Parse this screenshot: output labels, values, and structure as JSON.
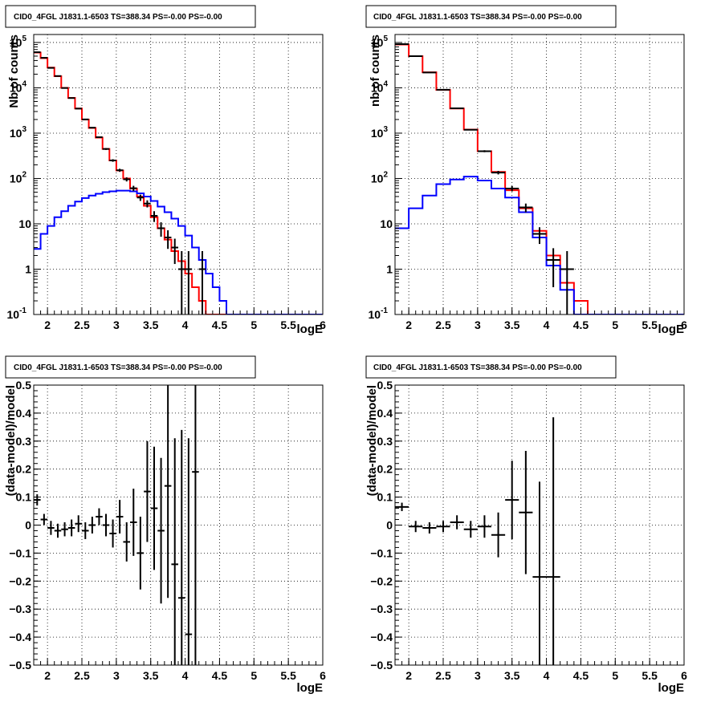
{
  "chart_data": [
    {
      "type": "histogram",
      "title": "CID0_4FGL J1831.1-6503 TS=388.34 PS=-0.00 PS=-0.00",
      "xlabel": "logE",
      "ylabel": "Nb of counts",
      "xlim": [
        1.8,
        6
      ],
      "ylim": [
        0.1,
        150000
      ],
      "yscale": "log",
      "grid": true,
      "xticks": [
        "2",
        "2.5",
        "3",
        "3.5",
        "4",
        "4.5",
        "5",
        "5.5",
        "6"
      ],
      "yticks": [
        "10^-1",
        "1",
        "10",
        "10^2",
        "10^3",
        "10^4",
        "10^5"
      ],
      "bin_edges": [
        1.8,
        1.9,
        2.0,
        2.1,
        2.2,
        2.3,
        2.4,
        2.5,
        2.6,
        2.7,
        2.8,
        2.9,
        3.0,
        3.1,
        3.2,
        3.3,
        3.4,
        3.5,
        3.6,
        3.7,
        3.8,
        3.9,
        4.0,
        4.1,
        4.2,
        4.3,
        4.4,
        4.5,
        4.6,
        4.7,
        4.8,
        4.9,
        5.0,
        5.1,
        5.2,
        5.3,
        5.4,
        5.5,
        5.6,
        5.7,
        5.8,
        5.9,
        6.0
      ],
      "series": [
        {
          "name": "",
          "role": "total",
          "color": "#ff0000",
          "values": [
            60000,
            45000,
            28000,
            18000,
            10000,
            6000,
            3500,
            2000,
            1300,
            800,
            450,
            250,
            150,
            100,
            60,
            40,
            25,
            14,
            8,
            4.5,
            2.5,
            1.5,
            0.8,
            0.4,
            0.2,
            0.1,
            0.1,
            0.1,
            0.1,
            0.1,
            0.1,
            0.1,
            0.1,
            0.1,
            0.1,
            0.1,
            0.1,
            0.1,
            0.1,
            0.1,
            0.1,
            0.1
          ]
        },
        {
          "name": "",
          "role": "source",
          "color": "#0000ff",
          "values": [
            2.8,
            6,
            9,
            14,
            19,
            25,
            31,
            37,
            42,
            46,
            50,
            52,
            54,
            54,
            52,
            47,
            40,
            32,
            24,
            18,
            13,
            9,
            5.5,
            3,
            1.6,
            0.8,
            0.4,
            0.2,
            0.1,
            0.1,
            0.1,
            0.1,
            0.1,
            0.1,
            0.1,
            0.1,
            0.1,
            0.1,
            0.1,
            0.1,
            0.1,
            0.1
          ]
        },
        {
          "name": "",
          "role": "data",
          "color": "#000000",
          "style": "points",
          "points": [
            {
              "x": 1.85,
              "y": 61000,
              "yerr_lo": 250,
              "yerr_hi": 250
            },
            {
              "x": 1.95,
              "y": 46000,
              "yerr_lo": 215,
              "yerr_hi": 215
            },
            {
              "x": 2.05,
              "y": 27500,
              "yerr_lo": 165,
              "yerr_hi": 165
            },
            {
              "x": 2.15,
              "y": 18200,
              "yerr_lo": 135,
              "yerr_hi": 135
            },
            {
              "x": 2.25,
              "y": 9900,
              "yerr_lo": 100,
              "yerr_hi": 100
            },
            {
              "x": 2.35,
              "y": 5950,
              "yerr_lo": 77,
              "yerr_hi": 77
            },
            {
              "x": 2.45,
              "y": 3480,
              "yerr_lo": 59,
              "yerr_hi": 59
            },
            {
              "x": 2.55,
              "y": 2010,
              "yerr_lo": 45,
              "yerr_hi": 45
            },
            {
              "x": 2.65,
              "y": 1320,
              "yerr_lo": 36,
              "yerr_hi": 36
            },
            {
              "x": 2.75,
              "y": 815,
              "yerr_lo": 28,
              "yerr_hi": 28
            },
            {
              "x": 2.85,
              "y": 448,
              "yerr_lo": 21,
              "yerr_hi": 21
            },
            {
              "x": 2.95,
              "y": 250,
              "yerr_lo": 16,
              "yerr_hi": 16
            },
            {
              "x": 3.05,
              "y": 152,
              "yerr_lo": 12,
              "yerr_hi": 12
            },
            {
              "x": 3.15,
              "y": 96,
              "yerr_lo": 10,
              "yerr_hi": 10
            },
            {
              "x": 3.25,
              "y": 61,
              "yerr_lo": 8,
              "yerr_hi": 8
            },
            {
              "x": 3.35,
              "y": 38,
              "yerr_lo": 6,
              "yerr_hi": 6
            },
            {
              "x": 3.45,
              "y": 28,
              "yerr_lo": 5,
              "yerr_hi": 5
            },
            {
              "x": 3.55,
              "y": 15,
              "yerr_lo": 4,
              "yerr_hi": 4
            },
            {
              "x": 3.65,
              "y": 8,
              "yerr_lo": 2.8,
              "yerr_hi": 2.8
            },
            {
              "x": 3.75,
              "y": 5,
              "yerr_lo": 2.2,
              "yerr_hi": 2.2
            },
            {
              "x": 3.85,
              "y": 3,
              "yerr_lo": 1.7,
              "yerr_hi": 1.7
            },
            {
              "x": 3.95,
              "y": 1,
              "yerr_lo": 0.99,
              "yerr_hi": 1.5
            },
            {
              "x": 4.05,
              "y": 1,
              "yerr_lo": 0.99,
              "yerr_hi": 1.5
            },
            {
              "x": 4.25,
              "y": 1,
              "yerr_lo": 0.99,
              "yerr_hi": 1.5
            }
          ]
        }
      ]
    },
    {
      "type": "histogram",
      "title": "CID0_4FGL J1831.1-6503 TS=388.34 PS=-0.00 PS=-0.00",
      "xlabel": "logE",
      "ylabel": "nb of counts",
      "xlim": [
        1.8,
        6
      ],
      "ylim": [
        0.1,
        150000
      ],
      "yscale": "log",
      "grid": true,
      "xticks": [
        "2",
        "2.5",
        "3",
        "3.5",
        "4",
        "4.5",
        "5",
        "5.5",
        "6"
      ],
      "yticks": [
        "10^-1",
        "1",
        "10",
        "10^2",
        "10^3",
        "10^4",
        "10^5"
      ],
      "bin_edges": [
        1.8,
        2.0,
        2.2,
        2.4,
        2.6,
        2.8,
        3.0,
        3.2,
        3.4,
        3.6,
        3.8,
        4.0,
        4.2,
        4.4,
        4.6,
        4.8,
        5.0,
        5.2,
        5.4,
        5.6,
        5.8,
        6.0
      ],
      "series": [
        {
          "name": "",
          "role": "total",
          "color": "#ff0000",
          "values": [
            90000,
            50000,
            22000,
            9000,
            3500,
            1200,
            400,
            140,
            55,
            22,
            7,
            2,
            0.5,
            0.2,
            0.1,
            0.1,
            0.1,
            0.1,
            0.1,
            0.1,
            0.1
          ]
        },
        {
          "name": "",
          "role": "source",
          "color": "#0000ff",
          "values": [
            8,
            22,
            42,
            75,
            95,
            110,
            90,
            60,
            38,
            18,
            5,
            1.2,
            0.35,
            0.1,
            0.1,
            0.1,
            0.1,
            0.1,
            0.1,
            0.1,
            0.1
          ]
        },
        {
          "name": "",
          "role": "data",
          "color": "#000000",
          "style": "points",
          "points": [
            {
              "x": 1.9,
              "y": 92000,
              "yerr_lo": 300,
              "yerr_hi": 300
            },
            {
              "x": 2.1,
              "y": 49800,
              "yerr_lo": 225,
              "yerr_hi": 225
            },
            {
              "x": 2.3,
              "y": 21800,
              "yerr_lo": 148,
              "yerr_hi": 148
            },
            {
              "x": 2.5,
              "y": 9050,
              "yerr_lo": 95,
              "yerr_hi": 95
            },
            {
              "x": 2.7,
              "y": 3540,
              "yerr_lo": 60,
              "yerr_hi": 60
            },
            {
              "x": 2.9,
              "y": 1190,
              "yerr_lo": 35,
              "yerr_hi": 35
            },
            {
              "x": 3.1,
              "y": 400,
              "yerr_lo": 20,
              "yerr_hi": 20
            },
            {
              "x": 3.3,
              "y": 135,
              "yerr_lo": 12,
              "yerr_hi": 12
            },
            {
              "x": 3.5,
              "y": 60,
              "yerr_lo": 8,
              "yerr_hi": 8
            },
            {
              "x": 3.7,
              "y": 23,
              "yerr_lo": 5,
              "yerr_hi": 5
            },
            {
              "x": 3.9,
              "y": 6,
              "yerr_lo": 2.4,
              "yerr_hi": 2.4
            },
            {
              "x": 4.1,
              "y": 1.6,
              "yerr_lo": 1.2,
              "yerr_hi": 1.3
            },
            {
              "x": 4.3,
              "y": 1,
              "yerr_lo": 0.99,
              "yerr_hi": 1.5
            }
          ]
        }
      ]
    },
    {
      "type": "scatter",
      "title": "CID0_4FGL J1831.1-6503 TS=388.34 PS=-0.00 PS=-0.00",
      "xlabel": "logE",
      "ylabel": "(data-model)/model",
      "xlim": [
        1.8,
        6
      ],
      "ylim": [
        -0.5,
        0.5
      ],
      "grid": true,
      "xticks": [
        "2",
        "2.5",
        "3",
        "3.5",
        "4",
        "4.5",
        "5",
        "5.5",
        "6"
      ],
      "yticks": [
        "-0.5",
        "-0.4",
        "-0.3",
        "-0.2",
        "-0.1",
        "0",
        "0.1",
        "0.2",
        "0.3",
        "0.4",
        "0.5"
      ],
      "series": [
        {
          "name": "",
          "color": "#000000",
          "points": [
            {
              "x": 1.85,
              "y": 0.09,
              "xerr": 0.05,
              "yerr": 0.02
            },
            {
              "x": 1.95,
              "y": 0.02,
              "xerr": 0.05,
              "yerr": 0.02
            },
            {
              "x": 2.05,
              "y": -0.01,
              "xerr": 0.05,
              "yerr": 0.025
            },
            {
              "x": 2.15,
              "y": -0.02,
              "xerr": 0.05,
              "yerr": 0.025
            },
            {
              "x": 2.25,
              "y": -0.015,
              "xerr": 0.05,
              "yerr": 0.025
            },
            {
              "x": 2.35,
              "y": -0.01,
              "xerr": 0.05,
              "yerr": 0.03
            },
            {
              "x": 2.45,
              "y": 0.005,
              "xerr": 0.05,
              "yerr": 0.03
            },
            {
              "x": 2.55,
              "y": -0.02,
              "xerr": 0.05,
              "yerr": 0.03
            },
            {
              "x": 2.65,
              "y": 0.0,
              "xerr": 0.05,
              "yerr": 0.03
            },
            {
              "x": 2.75,
              "y": 0.03,
              "xerr": 0.05,
              "yerr": 0.03
            },
            {
              "x": 2.85,
              "y": 0.0,
              "xerr": 0.05,
              "yerr": 0.04
            },
            {
              "x": 2.95,
              "y": -0.03,
              "xerr": 0.05,
              "yerr": 0.05
            },
            {
              "x": 3.05,
              "y": 0.03,
              "xerr": 0.05,
              "yerr": 0.06
            },
            {
              "x": 3.15,
              "y": -0.06,
              "xerr": 0.05,
              "yerr": 0.07
            },
            {
              "x": 3.25,
              "y": 0.01,
              "xerr": 0.05,
              "yerr": 0.12
            },
            {
              "x": 3.35,
              "y": -0.1,
              "xerr": 0.05,
              "yerr": 0.13
            },
            {
              "x": 3.45,
              "y": 0.12,
              "xerr": 0.05,
              "yerr": 0.18
            },
            {
              "x": 3.55,
              "y": 0.06,
              "xerr": 0.05,
              "yerr": 0.22
            },
            {
              "x": 3.65,
              "y": -0.02,
              "xerr": 0.05,
              "yerr": 0.26
            },
            {
              "x": 3.75,
              "y": 0.14,
              "xerr": 0.05,
              "yerr": 0.4
            },
            {
              "x": 3.85,
              "y": -0.14,
              "xerr": 0.05,
              "yerr": 0.45
            },
            {
              "x": 3.95,
              "y": -0.26,
              "xerr": 0.05,
              "yerr": 0.6
            },
            {
              "x": 4.05,
              "y": -0.39,
              "xerr": 0.05,
              "yerr": 0.7
            },
            {
              "x": 4.15,
              "y": 0.19,
              "xerr": 0.05,
              "yerr": 1.2
            }
          ]
        }
      ]
    },
    {
      "type": "scatter",
      "title": "CID0_4FGL J1831.1-6503 TS=388.34 PS=-0.00 PS=-0.00",
      "xlabel": "logE",
      "ylabel": "(data-model)/model",
      "xlim": [
        1.8,
        6
      ],
      "ylim": [
        -0.5,
        0.5
      ],
      "grid": true,
      "xticks": [
        "2",
        "2.5",
        "3",
        "3.5",
        "4",
        "4.5",
        "5",
        "5.5",
        "6"
      ],
      "yticks": [
        "-0.5",
        "-0.4",
        "-0.3",
        "-0.2",
        "-0.1",
        "0",
        "0.1",
        "0.2",
        "0.3",
        "0.4",
        "0.5"
      ],
      "series": [
        {
          "name": "",
          "color": "#000000",
          "points": [
            {
              "x": 1.9,
              "y": 0.065,
              "xerr": 0.1,
              "yerr": 0.015
            },
            {
              "x": 2.1,
              "y": -0.005,
              "xerr": 0.1,
              "yerr": 0.02
            },
            {
              "x": 2.3,
              "y": -0.01,
              "xerr": 0.1,
              "yerr": 0.02
            },
            {
              "x": 2.5,
              "y": -0.005,
              "xerr": 0.1,
              "yerr": 0.02
            },
            {
              "x": 2.7,
              "y": 0.01,
              "xerr": 0.1,
              "yerr": 0.025
            },
            {
              "x": 2.9,
              "y": -0.015,
              "xerr": 0.1,
              "yerr": 0.03
            },
            {
              "x": 3.1,
              "y": -0.005,
              "xerr": 0.1,
              "yerr": 0.04
            },
            {
              "x": 3.3,
              "y": -0.035,
              "xerr": 0.1,
              "yerr": 0.08
            },
            {
              "x": 3.5,
              "y": 0.09,
              "xerr": 0.1,
              "yerr": 0.14
            },
            {
              "x": 3.7,
              "y": 0.045,
              "xerr": 0.1,
              "yerr": 0.22
            },
            {
              "x": 3.9,
              "y": -0.185,
              "xerr": 0.1,
              "yerr": 0.34
            },
            {
              "x": 4.1,
              "y": -0.185,
              "xerr": 0.1,
              "yerr": 0.57
            }
          ]
        }
      ]
    }
  ]
}
